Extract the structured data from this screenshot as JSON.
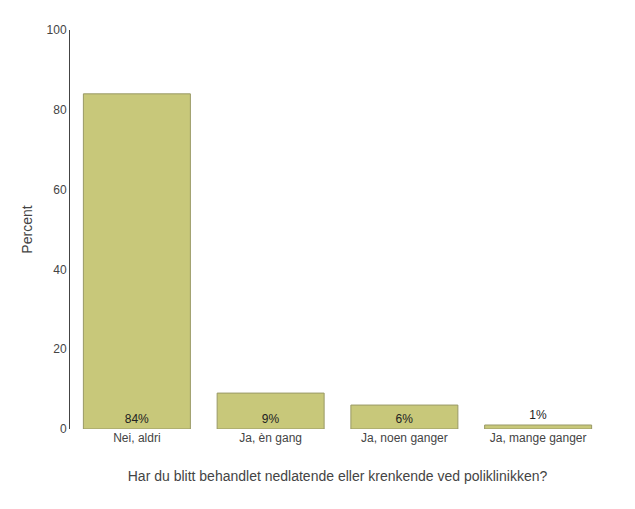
{
  "chart_data": {
    "type": "bar",
    "categories": [
      "Nei, aldri",
      "Ja, èn gang",
      "Ja, noen ganger",
      "Ja, mange ganger"
    ],
    "values": [
      84,
      9,
      6,
      1
    ],
    "value_labels": [
      "84%",
      "9%",
      "6%",
      "1%"
    ],
    "data_labels": true,
    "color": "#c8c87a",
    "xlabel": "Har du blitt behandlet nedlatende eller krenkende ved poliklinikken?",
    "ylabel": "Percent",
    "ylim": [
      0,
      100
    ],
    "yticks": [
      0,
      20,
      40,
      60,
      80,
      100
    ],
    "grid": false
  }
}
